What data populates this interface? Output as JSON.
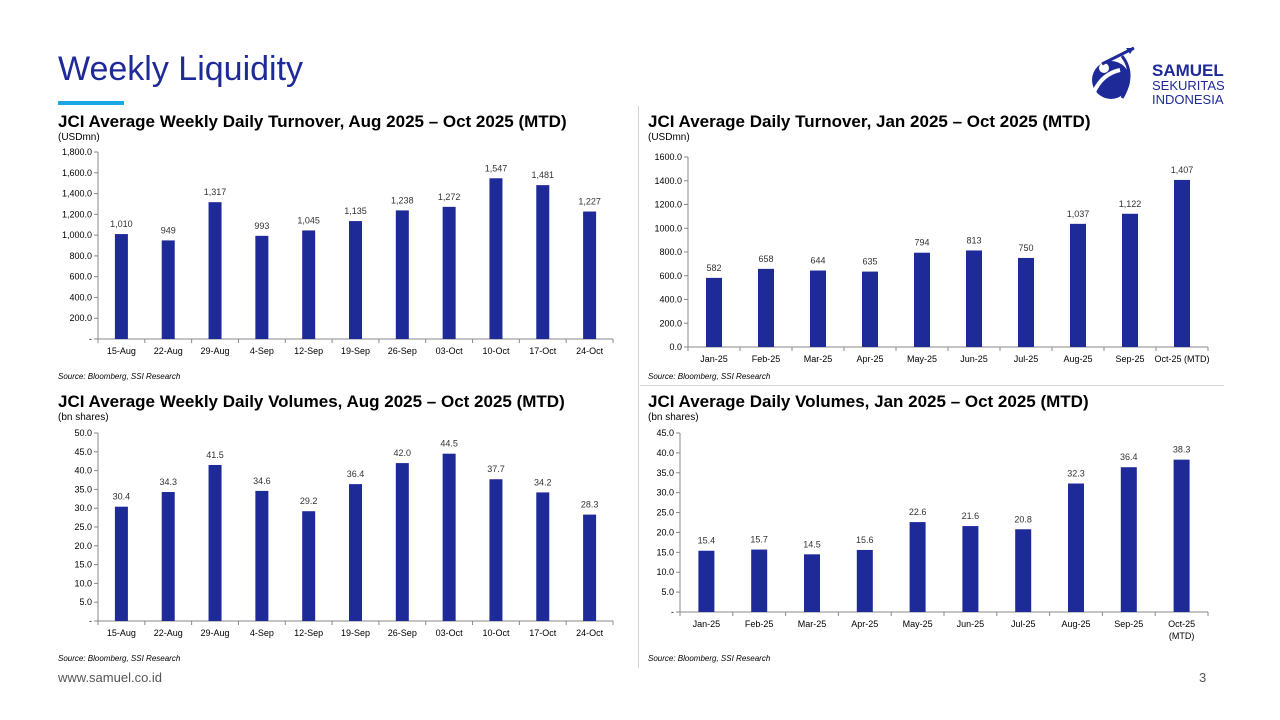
{
  "page": {
    "title": "Weekly Liquidity",
    "footer_url": "www.samuel.co.id",
    "page_number": "3",
    "logo": {
      "line1": "SAMUEL",
      "line2": "SEKURITAS",
      "line3": "INDONESIA"
    },
    "colors": {
      "title": "#1f2a99",
      "accent": "#1aa7e6",
      "bar": "#1f2a99"
    }
  },
  "chart_data": [
    {
      "type": "bar",
      "title": "JCI Average Weekly Daily Turnover, Aug 2025 – Oct 2025 (MTD)",
      "unit": "(USDmn)",
      "source": "Source: Bloomberg, SSI Research",
      "categories": [
        "15-Aug",
        "22-Aug",
        "29-Aug",
        "4-Sep",
        "12-Sep",
        "19-Sep",
        "26-Sep",
        "03-Oct",
        "10-Oct",
        "17-Oct",
        "24-Oct"
      ],
      "values": [
        1010,
        949,
        1317,
        993,
        1045,
        1135,
        1238,
        1272,
        1547,
        1481,
        1227
      ],
      "value_labels": [
        "1,010",
        "949",
        "1,317",
        "993",
        "1,045",
        "1,135",
        "1,238",
        "1,272",
        "1,547",
        "1,481",
        "1,227"
      ],
      "ylim": [
        0,
        1800
      ],
      "yticks": [
        "-",
        "200.0",
        "400.0",
        "600.0",
        "800.0",
        "1,000.0",
        "1,200.0",
        "1,400.0",
        "1,600.0",
        "1,800.0"
      ],
      "grid": false
    },
    {
      "type": "bar",
      "title": "JCI Average Daily Turnover, Jan 2025 – Oct 2025 (MTD)",
      "unit": "(USDmn)",
      "source": "Source: Bloomberg, SSI Research",
      "categories": [
        "Jan-25",
        "Feb-25",
        "Mar-25",
        "Apr-25",
        "May-25",
        "Jun-25",
        "Jul-25",
        "Aug-25",
        "Sep-25",
        "Oct-25 (MTD)"
      ],
      "values": [
        582,
        658,
        644,
        635,
        794,
        813,
        750,
        1037,
        1122,
        1407
      ],
      "value_labels": [
        "582",
        "658",
        "644",
        "635",
        "794",
        "813",
        "750",
        "1,037",
        "1,122",
        "1,407"
      ],
      "ylim": [
        0,
        1600
      ],
      "yticks": [
        "0.0",
        "200.0",
        "400.0",
        "600.0",
        "800.0",
        "1000.0",
        "1200.0",
        "1400.0",
        "1600.0"
      ],
      "grid": false
    },
    {
      "type": "bar",
      "title": "JCI Average Weekly Daily Volumes, Aug 2025 – Oct 2025 (MTD)",
      "unit": "(bn shares)",
      "source": "Source: Bloomberg, SSI Research",
      "categories": [
        "15-Aug",
        "22-Aug",
        "29-Aug",
        "4-Sep",
        "12-Sep",
        "19-Sep",
        "26-Sep",
        "03-Oct",
        "10-Oct",
        "17-Oct",
        "24-Oct"
      ],
      "values": [
        30.4,
        34.3,
        41.5,
        34.6,
        29.2,
        36.4,
        42.0,
        44.5,
        37.7,
        34.2,
        28.3
      ],
      "value_labels": [
        "30.4",
        "34.3",
        "41.5",
        "34.6",
        "29.2",
        "36.4",
        "42.0",
        "44.5",
        "37.7",
        "34.2",
        "28.3"
      ],
      "ylim": [
        0,
        50
      ],
      "yticks": [
        "-",
        "5.0",
        "10.0",
        "15.0",
        "20.0",
        "25.0",
        "30.0",
        "35.0",
        "40.0",
        "45.0",
        "50.0"
      ],
      "grid": false
    },
    {
      "type": "bar",
      "title": "JCI Average Daily Volumes, Jan 2025 – Oct 2025 (MTD)",
      "unit": "(bn shares)",
      "source": "Source: Bloomberg, SSI Research",
      "categories": [
        "Jan-25",
        "Feb-25",
        "Mar-25",
        "Apr-25",
        "May-25",
        "Jun-25",
        "Jul-25",
        "Aug-25",
        "Sep-25",
        "Oct-25 (MTD)"
      ],
      "values": [
        15.4,
        15.7,
        14.5,
        15.6,
        22.6,
        21.6,
        20.8,
        32.3,
        36.4,
        38.3
      ],
      "value_labels": [
        "15.4",
        "15.7",
        "14.5",
        "15.6",
        "22.6",
        "21.6",
        "20.8",
        "32.3",
        "36.4",
        "38.3"
      ],
      "ylim": [
        0,
        45
      ],
      "yticks": [
        "-",
        "5.0",
        "10.0",
        "15.0",
        "20.0",
        "25.0",
        "30.0",
        "35.0",
        "40.0",
        "45.0"
      ],
      "grid": false
    }
  ]
}
